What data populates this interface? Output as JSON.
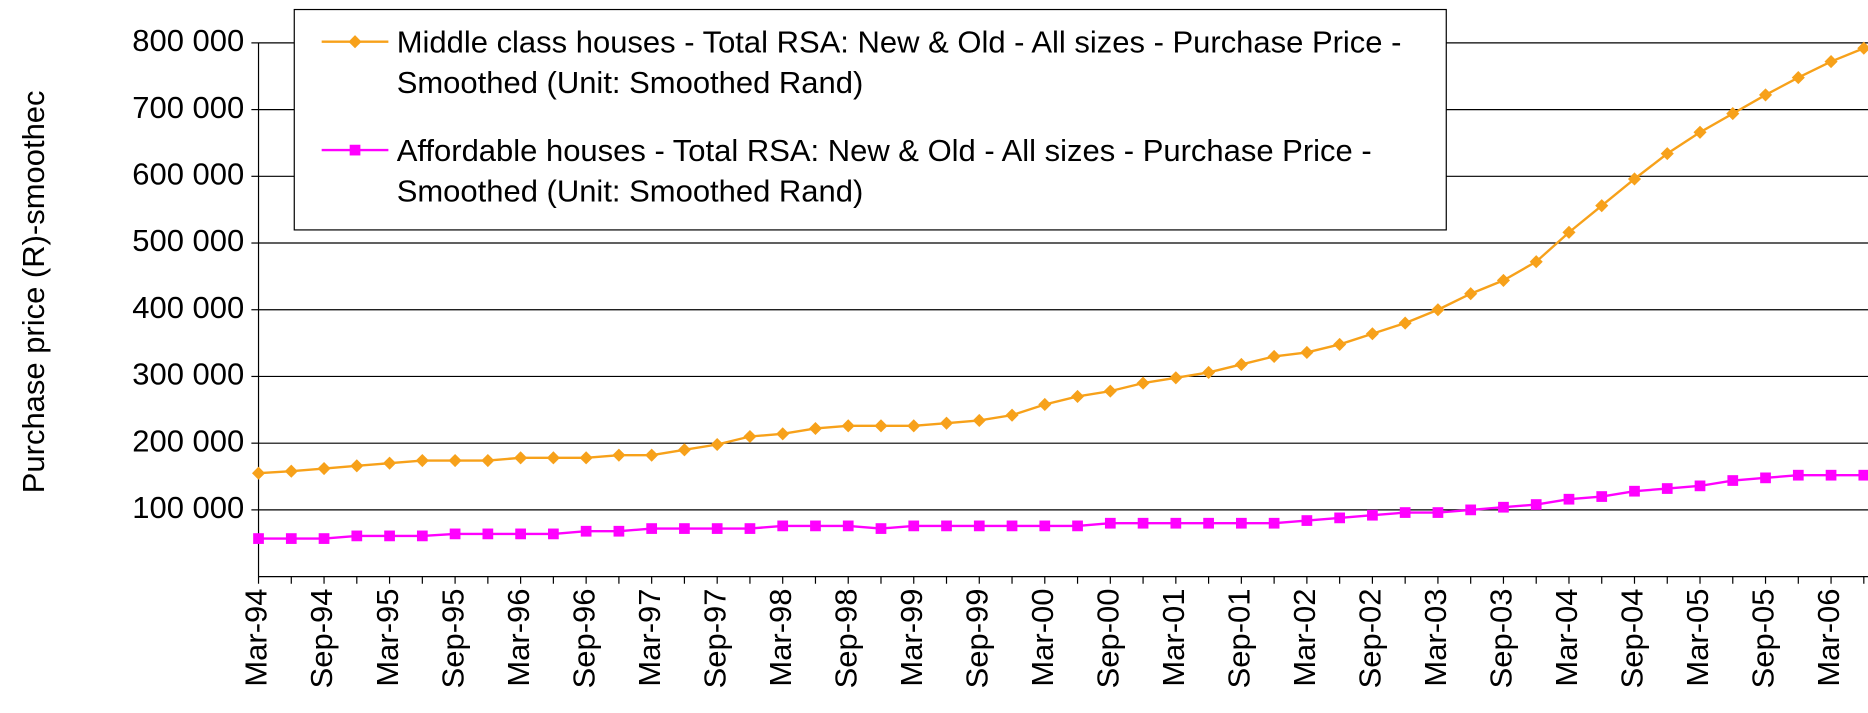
{
  "chart_data": {
    "type": "line",
    "y_label": "Purchase price (R)-smoothec",
    "categories": [
      "Mar-94",
      null,
      "Sep-94",
      null,
      "Mar-95",
      null,
      "Sep-95",
      null,
      "Mar-96",
      null,
      "Sep-96",
      null,
      "Mar-97",
      null,
      "Sep-97",
      null,
      "Mar-98",
      null,
      "Sep-98",
      null,
      "Mar-99",
      null,
      "Sep-99",
      null,
      "Mar-00",
      null,
      "Sep-00",
      null,
      "Mar-01",
      null,
      "Sep-01",
      null,
      "Mar-02",
      null,
      "Sep-02",
      null,
      "Mar-03",
      null,
      "Sep-03",
      null,
      "Mar-04",
      null,
      "Sep-04",
      null,
      "Mar-05",
      null,
      "Sep-05",
      null,
      "Mar-06",
      null
    ],
    "series": [
      {
        "name": "Middle class houses - Total RSA: New & Old - All sizes - Purchase Price - Smoothed (Unit: Smoothed Rand)",
        "color": "#f7a11a",
        "marker": "diamond",
        "values": [
          155000,
          158000,
          162000,
          166000,
          170000,
          174000,
          174000,
          174000,
          178000,
          178000,
          178000,
          182000,
          182000,
          190000,
          198000,
          210000,
          214000,
          222000,
          226000,
          226000,
          226000,
          230000,
          234000,
          242000,
          258000,
          270000,
          278000,
          290000,
          298000,
          306000,
          318000,
          330000,
          336000,
          348000,
          364000,
          380000,
          400000,
          424000,
          444000,
          472000,
          516000,
          556000,
          596000,
          634000,
          666000,
          694000,
          722000,
          748000,
          772000,
          792000
        ]
      },
      {
        "name": "Affordable houses - Total RSA: New & Old - All sizes - Purchase Price - Smoothed (Unit: Smoothed Rand)",
        "color": "#ff00ff",
        "marker": "square",
        "values": [
          57000,
          57000,
          57000,
          61000,
          61000,
          61000,
          64000,
          64000,
          64000,
          64000,
          68000,
          68000,
          72000,
          72000,
          72000,
          72000,
          76000,
          76000,
          76000,
          72000,
          76000,
          76000,
          76000,
          76000,
          76000,
          76000,
          80000,
          80000,
          80000,
          80000,
          80000,
          80000,
          84000,
          88000,
          92000,
          96000,
          96000,
          100000,
          104000,
          108000,
          116000,
          120000,
          128000,
          132000,
          136000,
          144000,
          148000,
          152000,
          152000,
          152000
        ]
      }
    ],
    "ylim": [
      0,
      800000
    ],
    "yticks": [
      {
        "value": 100000,
        "label": "100 000"
      },
      {
        "value": 200000,
        "label": "200 000"
      },
      {
        "value": 300000,
        "label": "300 000"
      },
      {
        "value": 400000,
        "label": "400 000"
      },
      {
        "value": 500000,
        "label": "500 000"
      },
      {
        "value": 600000,
        "label": "600 000"
      },
      {
        "value": 700000,
        "label": "700 000"
      },
      {
        "value": 800000,
        "label": "800 000"
      }
    ],
    "grid": true,
    "legend": "top"
  }
}
